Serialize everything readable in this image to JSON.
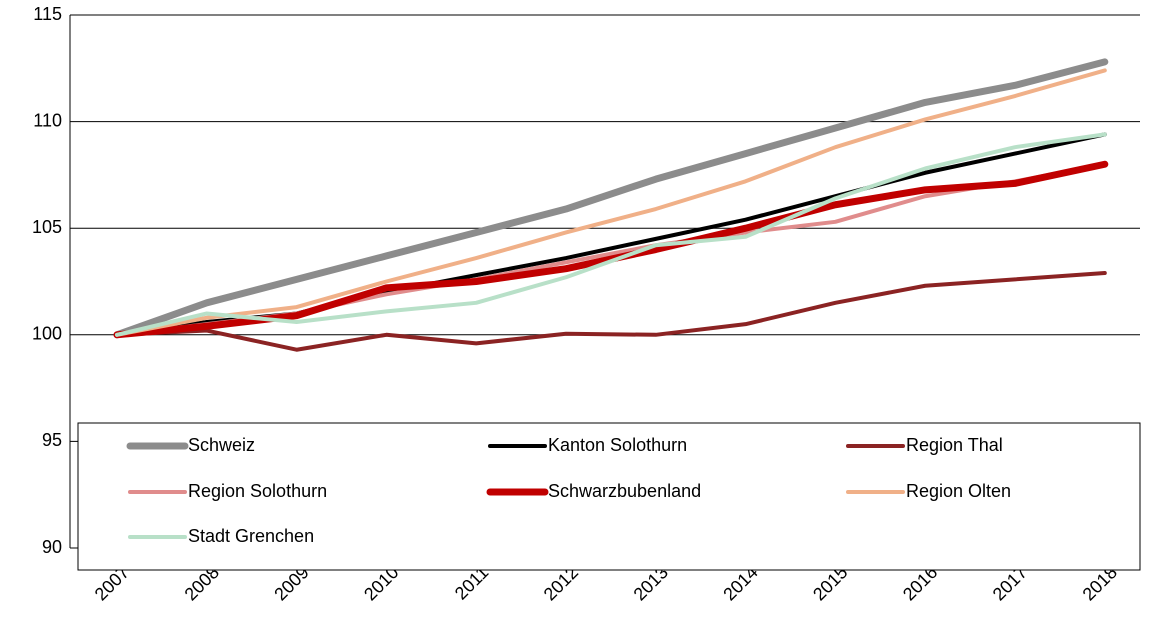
{
  "chart_data": {
    "type": "line",
    "x": [
      2007,
      2008,
      2009,
      2010,
      2011,
      2012,
      2013,
      2014,
      2015,
      2016,
      2017,
      2018
    ],
    "ylim": [
      90,
      115
    ],
    "yticks": [
      90,
      95,
      100,
      105,
      110,
      115
    ],
    "grid": true,
    "legend": "bottom",
    "series": [
      {
        "name": "Schweiz",
        "color": "#8c8c8c",
        "width": 7,
        "values": [
          100,
          101.5,
          102.6,
          103.7,
          104.8,
          105.9,
          107.3,
          108.5,
          109.7,
          110.9,
          111.7,
          112.8
        ]
      },
      {
        "name": "Kanton Solothurn",
        "color": "#000000",
        "width": 4,
        "values": [
          100,
          100.6,
          101.0,
          102.0,
          102.8,
          103.6,
          104.5,
          105.4,
          106.5,
          107.6,
          108.5,
          109.4
        ]
      },
      {
        "name": "Region Thal",
        "color": "#8b2323",
        "width": 4,
        "values": [
          100,
          100.2,
          99.3,
          100.0,
          99.6,
          100.05,
          100.0,
          100.5,
          101.5,
          102.3,
          102.6,
          102.9
        ]
      },
      {
        "name": "Region Solothurn",
        "color": "#e08c8c",
        "width": 4,
        "values": [
          100,
          100.5,
          101.0,
          101.9,
          102.6,
          103.4,
          104.2,
          104.8,
          105.3,
          106.5,
          107.2,
          108.0
        ]
      },
      {
        "name": "Schwarzbubenland",
        "color": "#c00000",
        "width": 7,
        "values": [
          100,
          100.4,
          100.9,
          102.2,
          102.5,
          103.1,
          104.0,
          105.0,
          106.1,
          106.8,
          107.1,
          108.0
        ]
      },
      {
        "name": "Region Olten",
        "color": "#f0b088",
        "width": 4,
        "values": [
          100,
          100.8,
          101.3,
          102.5,
          103.6,
          104.8,
          105.9,
          107.2,
          108.8,
          110.1,
          111.2,
          112.4
        ]
      },
      {
        "name": "Stadt Grenchen",
        "color": "#b8e0c8",
        "width": 4,
        "values": [
          100,
          101.0,
          100.6,
          101.1,
          101.5,
          102.7,
          104.2,
          104.6,
          106.4,
          107.8,
          108.8,
          109.4
        ]
      }
    ]
  }
}
